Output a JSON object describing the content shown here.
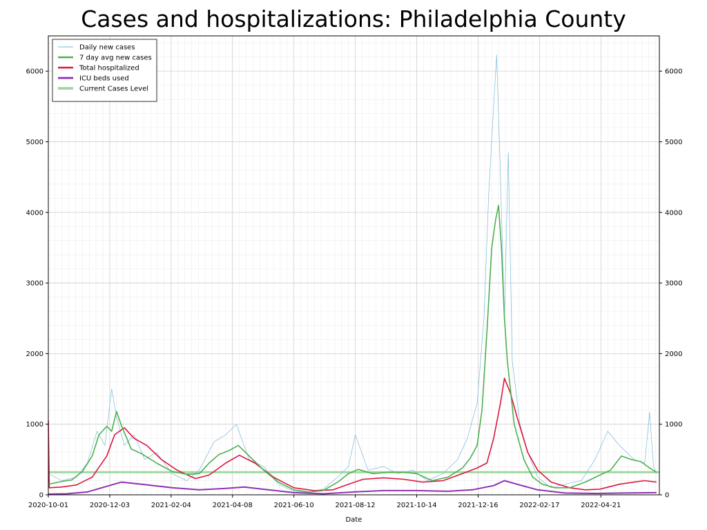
{
  "chart_data": {
    "type": "line",
    "title": "Cases and hospitalizations: Philadelphia County",
    "xlabel": "Date",
    "ylabel": "",
    "x_range": [
      "2020-10-01",
      "2022-06-20"
    ],
    "ylim": [
      0,
      6500
    ],
    "x_ticks": [
      "2020-10-01",
      "2020-12-03",
      "2021-02-04",
      "2021-04-08",
      "2021-06-10",
      "2021-08-12",
      "2021-10-14",
      "2021-12-16",
      "2022-02-17",
      "2022-04-21"
    ],
    "y_ticks": [
      0,
      1000,
      2000,
      3000,
      4000,
      5000,
      6000
    ],
    "grid": true,
    "legend_position": "top-left",
    "current_cases_level": 320,
    "series": [
      {
        "name": "Daily new cases",
        "color": "#7ab8d8",
        "points": [
          [
            "2020-10-01",
            300
          ],
          [
            "2020-10-15",
            200
          ],
          [
            "2020-10-30",
            250
          ],
          [
            "2020-11-10",
            450
          ],
          [
            "2020-11-20",
            900
          ],
          [
            "2020-11-28",
            700
          ],
          [
            "2020-12-05",
            1500
          ],
          [
            "2020-12-10",
            1100
          ],
          [
            "2020-12-18",
            700
          ],
          [
            "2020-12-28",
            850
          ],
          [
            "2021-01-08",
            500
          ],
          [
            "2021-01-20",
            600
          ],
          [
            "2021-02-05",
            300
          ],
          [
            "2021-02-20",
            200
          ],
          [
            "2021-03-05",
            350
          ],
          [
            "2021-03-20",
            750
          ],
          [
            "2021-04-01",
            850
          ],
          [
            "2021-04-12",
            1000
          ],
          [
            "2021-04-25",
            500
          ],
          [
            "2021-05-10",
            400
          ],
          [
            "2021-05-25",
            150
          ],
          [
            "2021-06-10",
            50
          ],
          [
            "2021-06-25",
            30
          ],
          [
            "2021-07-10",
            80
          ],
          [
            "2021-07-25",
            250
          ],
          [
            "2021-08-05",
            400
          ],
          [
            "2021-08-12",
            850
          ],
          [
            "2021-08-25",
            350
          ],
          [
            "2021-09-10",
            400
          ],
          [
            "2021-09-25",
            300
          ],
          [
            "2021-10-10",
            350
          ],
          [
            "2021-10-25",
            200
          ],
          [
            "2021-11-10",
            300
          ],
          [
            "2021-11-25",
            500
          ],
          [
            "2021-12-05",
            800
          ],
          [
            "2021-12-15",
            1300
          ],
          [
            "2021-12-22",
            2500
          ],
          [
            "2021-12-27",
            4300
          ],
          [
            "2022-01-01",
            5500
          ],
          [
            "2022-01-04",
            6230
          ],
          [
            "2022-01-08",
            4500
          ],
          [
            "2022-01-12",
            2500
          ],
          [
            "2022-01-16",
            4850
          ],
          [
            "2022-01-20",
            1900
          ],
          [
            "2022-01-28",
            1000
          ],
          [
            "2022-02-05",
            600
          ],
          [
            "2022-02-15",
            250
          ],
          [
            "2022-03-01",
            100
          ],
          [
            "2022-03-15",
            150
          ],
          [
            "2022-04-01",
            200
          ],
          [
            "2022-04-15",
            500
          ],
          [
            "2022-04-28",
            900
          ],
          [
            "2022-05-10",
            700
          ],
          [
            "2022-05-25",
            500
          ],
          [
            "2022-06-05",
            450
          ],
          [
            "2022-06-10",
            1170
          ],
          [
            "2022-06-14",
            400
          ],
          [
            "2022-06-17",
            300
          ]
        ]
      },
      {
        "name": "7 day avg new cases",
        "color": "#4caf50",
        "points": [
          [
            "2020-10-01",
            150
          ],
          [
            "2020-10-15",
            190
          ],
          [
            "2020-10-25",
            210
          ],
          [
            "2020-11-05",
            330
          ],
          [
            "2020-11-15",
            550
          ],
          [
            "2020-11-22",
            850
          ],
          [
            "2020-11-30",
            970
          ],
          [
            "2020-12-05",
            900
          ],
          [
            "2020-12-10",
            1180
          ],
          [
            "2020-12-15",
            980
          ],
          [
            "2020-12-25",
            650
          ],
          [
            "2021-01-05",
            580
          ],
          [
            "2021-01-20",
            450
          ],
          [
            "2021-02-05",
            330
          ],
          [
            "2021-02-20",
            290
          ],
          [
            "2021-03-05",
            300
          ],
          [
            "2021-03-15",
            450
          ],
          [
            "2021-03-25",
            570
          ],
          [
            "2021-04-05",
            630
          ],
          [
            "2021-04-14",
            700
          ],
          [
            "2021-04-25",
            550
          ],
          [
            "2021-05-10",
            350
          ],
          [
            "2021-05-25",
            180
          ],
          [
            "2021-06-10",
            70
          ],
          [
            "2021-06-25",
            40
          ],
          [
            "2021-07-10",
            60
          ],
          [
            "2021-07-25",
            180
          ],
          [
            "2021-08-05",
            300
          ],
          [
            "2021-08-15",
            360
          ],
          [
            "2021-08-30",
            300
          ],
          [
            "2021-09-15",
            320
          ],
          [
            "2021-10-01",
            320
          ],
          [
            "2021-10-14",
            300
          ],
          [
            "2021-10-30",
            200
          ],
          [
            "2021-11-15",
            250
          ],
          [
            "2021-11-30",
            380
          ],
          [
            "2021-12-08",
            520
          ],
          [
            "2021-12-15",
            700
          ],
          [
            "2021-12-20",
            1200
          ],
          [
            "2021-12-25",
            2300
          ],
          [
            "2021-12-30",
            3500
          ],
          [
            "2022-01-03",
            3900
          ],
          [
            "2022-01-06",
            4100
          ],
          [
            "2022-01-09",
            3500
          ],
          [
            "2022-01-12",
            2500
          ],
          [
            "2022-01-15",
            1900
          ],
          [
            "2022-01-22",
            1000
          ],
          [
            "2022-02-01",
            500
          ],
          [
            "2022-02-10",
            250
          ],
          [
            "2022-02-20",
            150
          ],
          [
            "2022-03-05",
            100
          ],
          [
            "2022-03-20",
            100
          ],
          [
            "2022-04-05",
            180
          ],
          [
            "2022-04-20",
            280
          ],
          [
            "2022-05-01",
            350
          ],
          [
            "2022-05-12",
            550
          ],
          [
            "2022-05-22",
            500
          ],
          [
            "2022-06-01",
            470
          ],
          [
            "2022-06-10",
            380
          ],
          [
            "2022-06-17",
            320
          ]
        ]
      },
      {
        "name": "Total hospitalized",
        "color": "#dc143c",
        "points": [
          [
            "2020-10-01",
            1050
          ],
          [
            "2020-10-02",
            100
          ],
          [
            "2020-10-15",
            110
          ],
          [
            "2020-10-30",
            140
          ],
          [
            "2020-11-15",
            250
          ],
          [
            "2020-11-30",
            550
          ],
          [
            "2020-12-08",
            850
          ],
          [
            "2020-12-18",
            950
          ],
          [
            "2020-12-28",
            800
          ],
          [
            "2021-01-10",
            700
          ],
          [
            "2021-01-25",
            500
          ],
          [
            "2021-02-10",
            350
          ],
          [
            "2021-03-01",
            230
          ],
          [
            "2021-03-15",
            280
          ],
          [
            "2021-04-01",
            450
          ],
          [
            "2021-04-15",
            560
          ],
          [
            "2021-05-01",
            450
          ],
          [
            "2021-05-20",
            250
          ],
          [
            "2021-06-10",
            100
          ],
          [
            "2021-07-01",
            60
          ],
          [
            "2021-07-20",
            70
          ],
          [
            "2021-08-05",
            150
          ],
          [
            "2021-08-20",
            220
          ],
          [
            "2021-09-10",
            240
          ],
          [
            "2021-10-01",
            220
          ],
          [
            "2021-10-20",
            180
          ],
          [
            "2021-11-10",
            200
          ],
          [
            "2021-11-30",
            300
          ],
          [
            "2021-12-15",
            380
          ],
          [
            "2021-12-25",
            450
          ],
          [
            "2022-01-01",
            800
          ],
          [
            "2022-01-08",
            1300
          ],
          [
            "2022-01-12",
            1650
          ],
          [
            "2022-01-18",
            1450
          ],
          [
            "2022-01-25",
            1100
          ],
          [
            "2022-02-05",
            600
          ],
          [
            "2022-02-15",
            350
          ],
          [
            "2022-03-01",
            180
          ],
          [
            "2022-03-20",
            100
          ],
          [
            "2022-04-05",
            70
          ],
          [
            "2022-04-20",
            80
          ],
          [
            "2022-05-10",
            150
          ],
          [
            "2022-05-25",
            180
          ],
          [
            "2022-06-05",
            200
          ],
          [
            "2022-06-17",
            180
          ]
        ]
      },
      {
        "name": "ICU beds used",
        "color": "#8e2fb0",
        "points": [
          [
            "2020-10-01",
            10
          ],
          [
            "2020-10-20",
            15
          ],
          [
            "2020-11-10",
            40
          ],
          [
            "2020-11-30",
            120
          ],
          [
            "2020-12-15",
            180
          ],
          [
            "2021-01-05",
            150
          ],
          [
            "2021-02-05",
            100
          ],
          [
            "2021-03-05",
            70
          ],
          [
            "2021-04-01",
            90
          ],
          [
            "2021-04-20",
            110
          ],
          [
            "2021-05-15",
            70
          ],
          [
            "2021-06-10",
            30
          ],
          [
            "2021-07-10",
            15
          ],
          [
            "2021-08-10",
            40
          ],
          [
            "2021-09-10",
            60
          ],
          [
            "2021-10-14",
            60
          ],
          [
            "2021-11-15",
            50
          ],
          [
            "2021-12-10",
            70
          ],
          [
            "2022-01-01",
            130
          ],
          [
            "2022-01-12",
            200
          ],
          [
            "2022-01-25",
            150
          ],
          [
            "2022-02-15",
            70
          ],
          [
            "2022-03-15",
            25
          ],
          [
            "2022-04-15",
            20
          ],
          [
            "2022-05-15",
            25
          ],
          [
            "2022-06-17",
            30
          ]
        ]
      },
      {
        "name": "Current Cases Level",
        "color": "#9ed89e",
        "points": [
          [
            "2020-10-01",
            320
          ],
          [
            "2022-06-20",
            320
          ]
        ]
      }
    ]
  }
}
